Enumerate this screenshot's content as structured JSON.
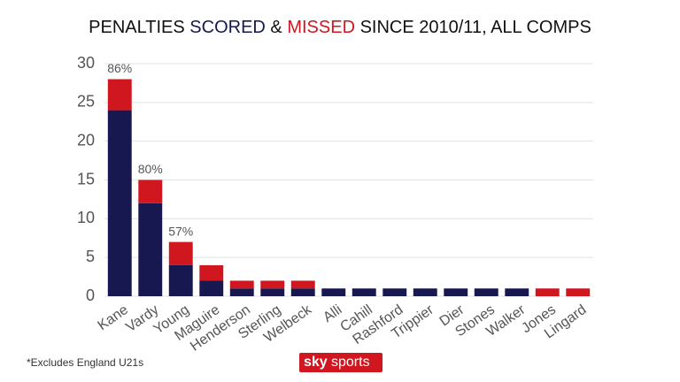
{
  "chart_data": {
    "type": "stacked_bar",
    "title_parts": [
      "PENALTIES",
      "&",
      "SINCE 2010/11, ALL COMPS"
    ],
    "categories": [
      "Kane",
      "Vardy",
      "Young",
      "Maguire",
      "Henderson",
      "Sterling",
      "Welbeck",
      "Alli",
      "Cahill",
      "Rashford",
      "Trippier",
      "Dier",
      "Stones",
      "Walker",
      "Jones",
      "Lingard"
    ],
    "series": [
      {
        "name": "SCORED",
        "color": "#16184f",
        "values": [
          24,
          12,
          4,
          2,
          1,
          1,
          1,
          1,
          1,
          1,
          1,
          1,
          1,
          1,
          0,
          0
        ]
      },
      {
        "name": "MISSED",
        "color": "#d0161e",
        "values": [
          4,
          3,
          3,
          2,
          1,
          1,
          1,
          0,
          0,
          0,
          0,
          0,
          0,
          0,
          1,
          1
        ]
      }
    ],
    "conversion_labels": [
      "86%",
      "80%",
      "57%",
      null,
      null,
      null,
      null,
      null,
      null,
      null,
      null,
      null,
      null,
      null,
      null,
      null
    ],
    "ylim": [
      0,
      30
    ],
    "yticks": [
      0,
      5,
      10,
      15,
      20,
      25,
      30
    ],
    "grid": true,
    "footnote": "*Excludes England U21s",
    "logo": [
      "sky",
      "sports"
    ]
  }
}
